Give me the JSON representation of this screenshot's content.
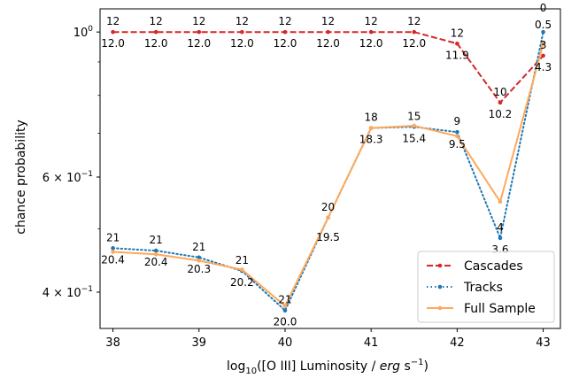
{
  "chart_data": {
    "type": "line",
    "title": "",
    "xlabel": "log₁₀([O III] Luminosity / erg s⁻¹)",
    "xlabel_parts": {
      "prefix": "log",
      "sub": "10",
      "mid": "([O III] Luminosity / ",
      "italic": "erg",
      "unit": " s",
      "sup": "−1",
      "suffix": ")"
    },
    "ylabel": "chance probability",
    "yscale": "log",
    "xlim": [
      37.85,
      43.2
    ],
    "ylim": [
      0.352,
      1.085
    ],
    "x_ticks": [
      {
        "value": 38,
        "label": "38"
      },
      {
        "value": 39,
        "label": "39"
      },
      {
        "value": 40,
        "label": "40"
      },
      {
        "value": 41,
        "label": "41"
      },
      {
        "value": 42,
        "label": "42"
      },
      {
        "value": 43,
        "label": "43"
      }
    ],
    "y_ticks": [
      {
        "value": 1.0,
        "base": "10",
        "exp": "0",
        "coef": ""
      },
      {
        "value": 0.6,
        "base": "10",
        "exp": "−1",
        "coef": "6 × "
      },
      {
        "value": 0.4,
        "base": "10",
        "exp": "−1",
        "coef": "4 × "
      }
    ],
    "x": [
      38,
      38.5,
      39,
      39.5,
      40,
      40.5,
      41,
      41.5,
      42,
      42.5,
      43
    ],
    "series": [
      {
        "name": "Cascades",
        "color": "#d62728",
        "style": "dashed",
        "values": [
          1.0,
          1.0,
          1.0,
          1.0,
          1.0,
          1.0,
          1.0,
          1.0,
          0.96,
          0.78,
          0.92
        ]
      },
      {
        "name": "Tracks",
        "color": "#1f77b4",
        "style": "dotted",
        "values": [
          0.467,
          0.463,
          0.452,
          0.431,
          0.375,
          0.52,
          0.713,
          0.716,
          0.703,
          0.484,
          1.0
        ]
      },
      {
        "name": "Full Sample",
        "color": "#ffa85a",
        "style": "solid",
        "values": [
          0.461,
          0.457,
          0.447,
          0.433,
          0.381,
          0.52,
          0.713,
          0.719,
          0.693,
          0.55,
          0.96
        ]
      }
    ],
    "annotations": {
      "cascades_above": [
        "12",
        "12",
        "12",
        "12",
        "12",
        "12",
        "12",
        "12",
        "12",
        "10",
        "3"
      ],
      "cascades_below": [
        "12.0",
        "12.0",
        "12.0",
        "12.0",
        "12.0",
        "12.0",
        "12.0",
        "12.0",
        "11.9",
        "10.2",
        "4.3"
      ],
      "tracks_above": [
        "21",
        "21",
        "21",
        "21",
        "21",
        "20",
        "18",
        "15",
        "9",
        "4",
        "0"
      ],
      "tracks_below": [
        "20.4",
        "20.4",
        "20.3",
        "20.2",
        "20.0",
        "19.5",
        "18.3",
        "15.4",
        "9.5",
        "3.6",
        "0.5"
      ]
    },
    "legend_position": "lower-right"
  }
}
